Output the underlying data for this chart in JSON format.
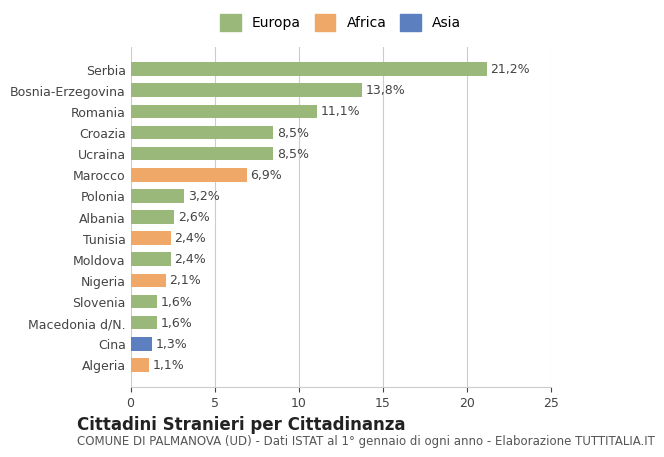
{
  "categories": [
    "Algeria",
    "Cina",
    "Macedonia d/N.",
    "Slovenia",
    "Nigeria",
    "Moldova",
    "Tunisia",
    "Albania",
    "Polonia",
    "Marocco",
    "Ucraina",
    "Croazia",
    "Romania",
    "Bosnia-Erzegovina",
    "Serbia"
  ],
  "values": [
    1.1,
    1.3,
    1.6,
    1.6,
    2.1,
    2.4,
    2.4,
    2.6,
    3.2,
    6.9,
    8.5,
    8.5,
    11.1,
    13.8,
    21.2
  ],
  "colors": [
    "#f0a868",
    "#5b7fbf",
    "#9ab87a",
    "#9ab87a",
    "#f0a868",
    "#9ab87a",
    "#f0a868",
    "#9ab87a",
    "#9ab87a",
    "#f0a868",
    "#9ab87a",
    "#9ab87a",
    "#9ab87a",
    "#9ab87a",
    "#9ab87a"
  ],
  "labels": [
    "1,1%",
    "1,3%",
    "1,6%",
    "1,6%",
    "2,1%",
    "2,4%",
    "2,4%",
    "2,6%",
    "3,2%",
    "6,9%",
    "8,5%",
    "8,5%",
    "11,1%",
    "13,8%",
    "21,2%"
  ],
  "legend": [
    {
      "label": "Europa",
      "color": "#9ab87a"
    },
    {
      "label": "Africa",
      "color": "#f0a868"
    },
    {
      "label": "Asia",
      "color": "#5b7fbf"
    }
  ],
  "xlim": [
    0,
    25
  ],
  "xticks": [
    0,
    5,
    10,
    15,
    20,
    25
  ],
  "title": "Cittadini Stranieri per Cittadinanza",
  "subtitle": "COMUNE DI PALMANOVA (UD) - Dati ISTAT al 1° gennaio di ogni anno - Elaborazione TUTTITALIA.IT",
  "bg_color": "#ffffff",
  "grid_color": "#cccccc",
  "bar_height": 0.65,
  "label_fontsize": 9,
  "tick_fontsize": 9,
  "title_fontsize": 12,
  "subtitle_fontsize": 8.5
}
